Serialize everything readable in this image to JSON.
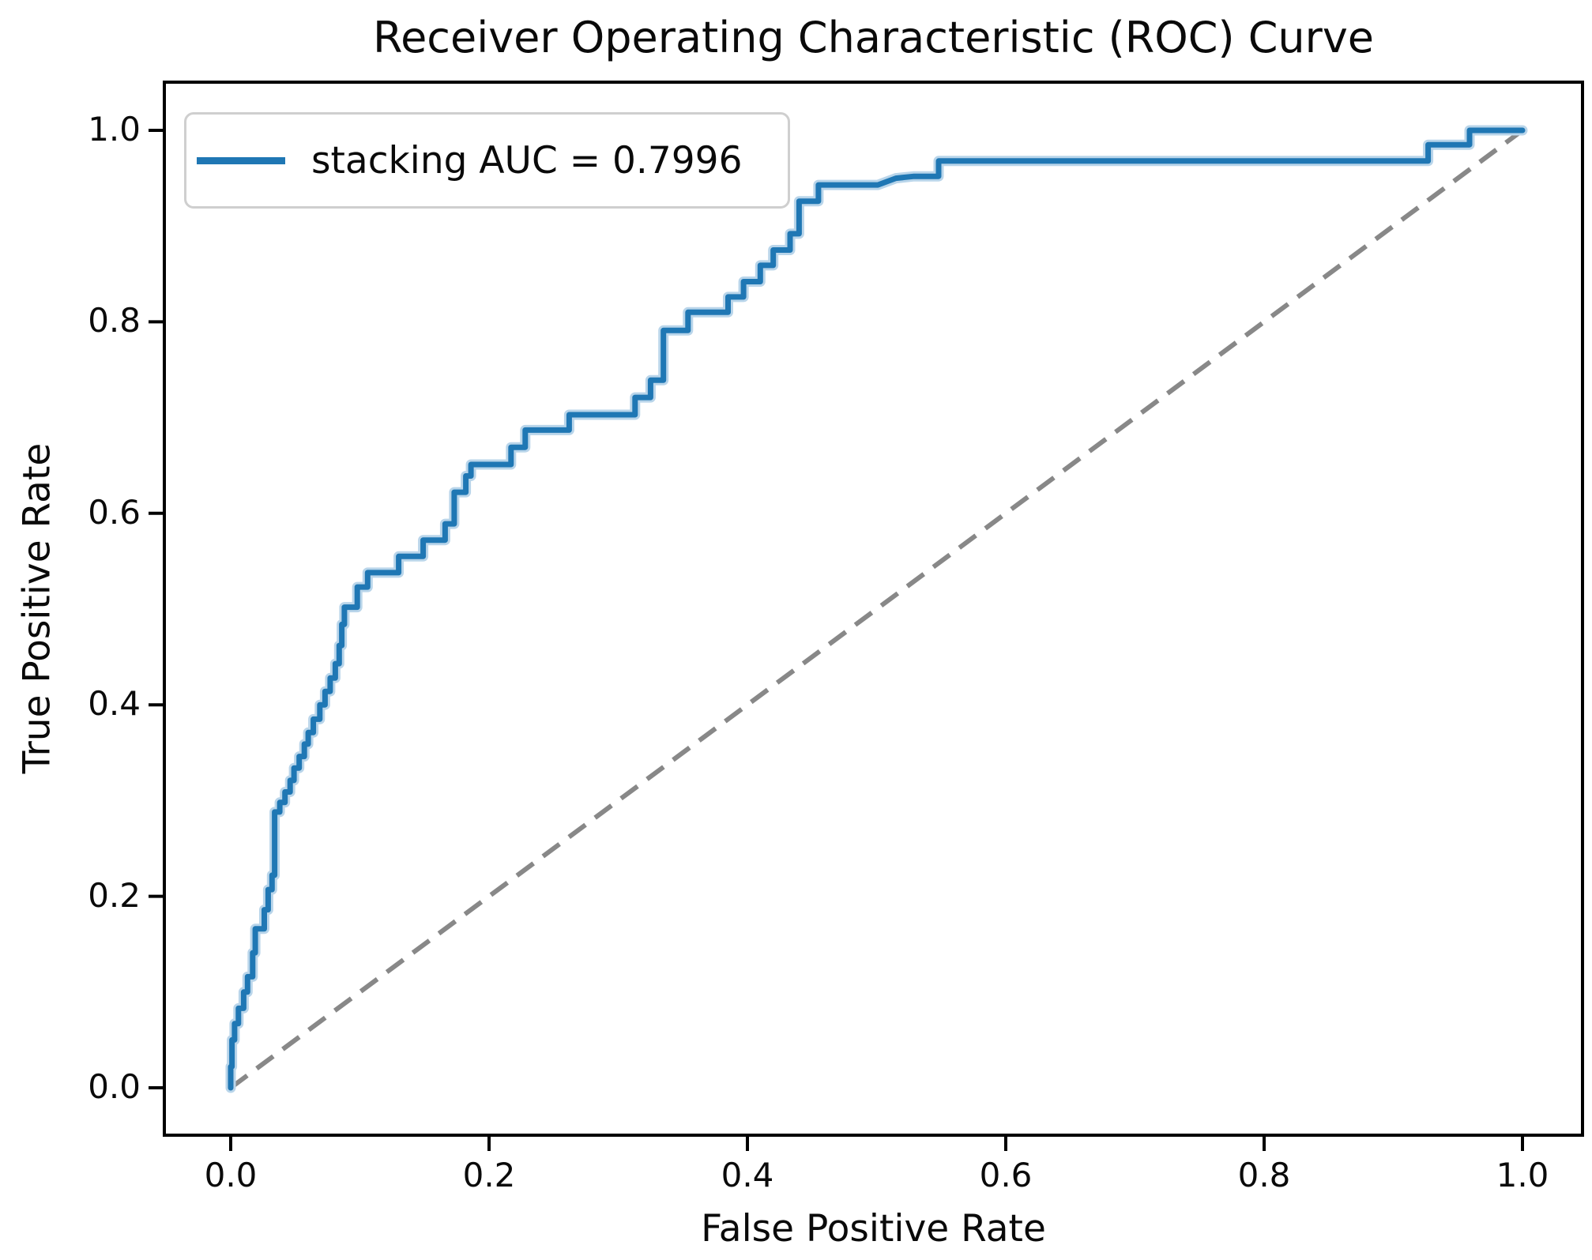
{
  "chart_data": {
    "type": "line",
    "title": "Receiver Operating Characteristic (ROC) Curve",
    "xlabel": "False Positive Rate",
    "ylabel": "True Positive Rate",
    "xlim": [
      -0.05,
      1.05
    ],
    "ylim": [
      -0.05,
      1.05
    ],
    "grid": false,
    "x_ticks": [
      "0.0",
      "0.2",
      "0.4",
      "0.6",
      "0.8",
      "1.0"
    ],
    "y_ticks": [
      "0.0",
      "0.2",
      "0.4",
      "0.6",
      "0.8",
      "1.0"
    ],
    "legend": {
      "position": "upper left",
      "label": "stacking AUC = 0.7996"
    },
    "series": [
      {
        "name": "stacking ROC curve",
        "auc": 0.7996,
        "color": "#1f77b4",
        "halo_color": "#b9d5ea",
        "style": "solid",
        "points": [
          [
            0.0,
            0.0
          ],
          [
            0.0,
            0.022
          ],
          [
            0.001,
            0.022
          ],
          [
            0.001,
            0.05
          ],
          [
            0.003,
            0.05
          ],
          [
            0.003,
            0.067
          ],
          [
            0.006,
            0.067
          ],
          [
            0.006,
            0.083
          ],
          [
            0.01,
            0.083
          ],
          [
            0.01,
            0.1
          ],
          [
            0.013,
            0.1
          ],
          [
            0.013,
            0.116
          ],
          [
            0.017,
            0.116
          ],
          [
            0.017,
            0.141
          ],
          [
            0.019,
            0.141
          ],
          [
            0.019,
            0.166
          ],
          [
            0.026,
            0.166
          ],
          [
            0.026,
            0.186
          ],
          [
            0.029,
            0.186
          ],
          [
            0.029,
            0.207
          ],
          [
            0.032,
            0.207
          ],
          [
            0.032,
            0.222
          ],
          [
            0.034,
            0.222
          ],
          [
            0.034,
            0.288
          ],
          [
            0.038,
            0.288
          ],
          [
            0.038,
            0.298
          ],
          [
            0.042,
            0.298
          ],
          [
            0.042,
            0.309
          ],
          [
            0.046,
            0.309
          ],
          [
            0.046,
            0.321
          ],
          [
            0.049,
            0.321
          ],
          [
            0.049,
            0.334
          ],
          [
            0.053,
            0.334
          ],
          [
            0.053,
            0.346
          ],
          [
            0.057,
            0.346
          ],
          [
            0.057,
            0.359
          ],
          [
            0.06,
            0.359
          ],
          [
            0.06,
            0.371
          ],
          [
            0.064,
            0.371
          ],
          [
            0.064,
            0.385
          ],
          [
            0.069,
            0.385
          ],
          [
            0.069,
            0.4
          ],
          [
            0.073,
            0.4
          ],
          [
            0.073,
            0.414
          ],
          [
            0.077,
            0.414
          ],
          [
            0.077,
            0.428
          ],
          [
            0.081,
            0.428
          ],
          [
            0.081,
            0.443
          ],
          [
            0.084,
            0.443
          ],
          [
            0.084,
            0.462
          ],
          [
            0.086,
            0.462
          ],
          [
            0.086,
            0.484
          ],
          [
            0.088,
            0.484
          ],
          [
            0.088,
            0.502
          ],
          [
            0.098,
            0.502
          ],
          [
            0.098,
            0.523
          ],
          [
            0.106,
            0.523
          ],
          [
            0.106,
            0.538
          ],
          [
            0.13,
            0.538
          ],
          [
            0.13,
            0.555
          ],
          [
            0.149,
            0.555
          ],
          [
            0.149,
            0.572
          ],
          [
            0.166,
            0.572
          ],
          [
            0.166,
            0.589
          ],
          [
            0.173,
            0.589
          ],
          [
            0.173,
            0.622
          ],
          [
            0.182,
            0.622
          ],
          [
            0.182,
            0.639
          ],
          [
            0.186,
            0.639
          ],
          [
            0.186,
            0.651
          ],
          [
            0.217,
            0.651
          ],
          [
            0.217,
            0.669
          ],
          [
            0.228,
            0.669
          ],
          [
            0.228,
            0.687
          ],
          [
            0.262,
            0.687
          ],
          [
            0.262,
            0.703
          ],
          [
            0.313,
            0.703
          ],
          [
            0.313,
            0.721
          ],
          [
            0.325,
            0.721
          ],
          [
            0.325,
            0.739
          ],
          [
            0.335,
            0.739
          ],
          [
            0.335,
            0.791
          ],
          [
            0.354,
            0.791
          ],
          [
            0.354,
            0.81
          ],
          [
            0.385,
            0.81
          ],
          [
            0.385,
            0.826
          ],
          [
            0.397,
            0.826
          ],
          [
            0.397,
            0.842
          ],
          [
            0.41,
            0.842
          ],
          [
            0.41,
            0.859
          ],
          [
            0.42,
            0.859
          ],
          [
            0.42,
            0.875
          ],
          [
            0.433,
            0.875
          ],
          [
            0.433,
            0.892
          ],
          [
            0.44,
            0.892
          ],
          [
            0.44,
            0.926
          ],
          [
            0.455,
            0.926
          ],
          [
            0.455,
            0.943
          ],
          [
            0.501,
            0.943
          ],
          [
            0.515,
            0.95
          ],
          [
            0.529,
            0.952
          ],
          [
            0.548,
            0.952
          ],
          [
            0.548,
            0.968
          ],
          [
            0.927,
            0.968
          ],
          [
            0.927,
            0.985
          ],
          [
            0.959,
            0.985
          ],
          [
            0.959,
            1.0
          ],
          [
            1.0,
            1.0
          ]
        ]
      },
      {
        "name": "chance diagonal",
        "color": "#888888",
        "style": "dashed",
        "points": [
          [
            0.0,
            0.0
          ],
          [
            1.0,
            1.0
          ]
        ]
      }
    ]
  }
}
